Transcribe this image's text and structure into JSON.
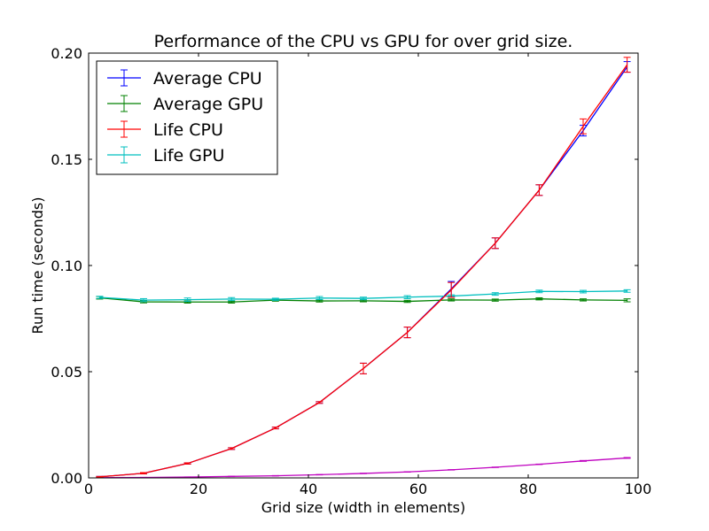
{
  "chart_data": {
    "type": "line",
    "title": "Performance of the CPU vs GPU for over grid size.",
    "xlabel": "Grid size (width in elements)",
    "ylabel": "Run time (seconds)",
    "xlim": [
      0,
      100
    ],
    "ylim": [
      0,
      0.2
    ],
    "xticks": [
      0,
      20,
      40,
      60,
      80,
      100
    ],
    "xtick_labels": [
      "0",
      "20",
      "40",
      "60",
      "80",
      "100"
    ],
    "yticks": [
      0,
      0.05,
      0.1,
      0.15,
      0.2
    ],
    "ytick_labels": [
      "0.00",
      "0.05",
      "0.10",
      "0.15",
      "0.20"
    ],
    "grid": false,
    "legend_position": "top-left",
    "x": [
      2,
      10,
      18,
      26,
      34,
      42,
      50,
      58,
      66,
      74,
      82,
      90,
      98
    ],
    "series": [
      {
        "name": "Average CPU",
        "color": "#0000ff",
        "in_legend": true,
        "values": [
          0.0005,
          0.0022,
          0.0068,
          0.0138,
          0.0235,
          0.0355,
          0.0515,
          0.0685,
          0.089,
          0.1105,
          0.1355,
          0.1635,
          0.1935
        ],
        "errors": [
          0.0002,
          0.0003,
          0.0003,
          0.0004,
          0.0004,
          0.0004,
          0.0025,
          0.0025,
          0.0035,
          0.0025,
          0.0025,
          0.0025,
          0.0025
        ]
      },
      {
        "name": "Average GPU",
        "color": "#008000",
        "in_legend": true,
        "values": [
          0.0848,
          0.0829,
          0.0828,
          0.0828,
          0.0837,
          0.0833,
          0.0834,
          0.0831,
          0.0838,
          0.0837,
          0.0843,
          0.0838,
          0.0836
        ],
        "errors": [
          0.0006,
          0.0005,
          0.0005,
          0.0005,
          0.0005,
          0.0005,
          0.0005,
          0.0005,
          0.0005,
          0.0005,
          0.0005,
          0.0005,
          0.0007
        ]
      },
      {
        "name": "Life CPU",
        "color": "#ff0000",
        "in_legend": true,
        "values": [
          0.0005,
          0.0022,
          0.0068,
          0.0138,
          0.0235,
          0.0355,
          0.0515,
          0.0685,
          0.0885,
          0.1105,
          0.1355,
          0.1655,
          0.1945
        ],
        "errors": [
          0.0002,
          0.0003,
          0.0003,
          0.0004,
          0.0004,
          0.0004,
          0.0025,
          0.0025,
          0.0035,
          0.0025,
          0.0025,
          0.0035,
          0.0035
        ]
      },
      {
        "name": "Life GPU",
        "color": "#00bfbf",
        "in_legend": true,
        "values": [
          0.085,
          0.0837,
          0.0839,
          0.0842,
          0.0841,
          0.0847,
          0.0845,
          0.0851,
          0.0856,
          0.0866,
          0.0878,
          0.0877,
          0.088
        ],
        "errors": [
          0.0005,
          0.0007,
          0.0008,
          0.0007,
          0.0005,
          0.0007,
          0.0006,
          0.0007,
          0.0006,
          0.0006,
          0.0006,
          0.0006,
          0.0006
        ]
      },
      {
        "name": "",
        "color": "#bf00bf",
        "in_legend": false,
        "values": [
          0.0001,
          0.0002,
          0.0004,
          0.0007,
          0.001,
          0.0015,
          0.0021,
          0.0028,
          0.0038,
          0.005,
          0.0064,
          0.008,
          0.0094
        ],
        "errors": [
          5e-05,
          5e-05,
          5e-05,
          0.0001,
          0.0001,
          0.0001,
          0.0001,
          0.0001,
          0.0001,
          0.0001,
          0.0001,
          0.0002,
          0.0002
        ]
      }
    ]
  }
}
